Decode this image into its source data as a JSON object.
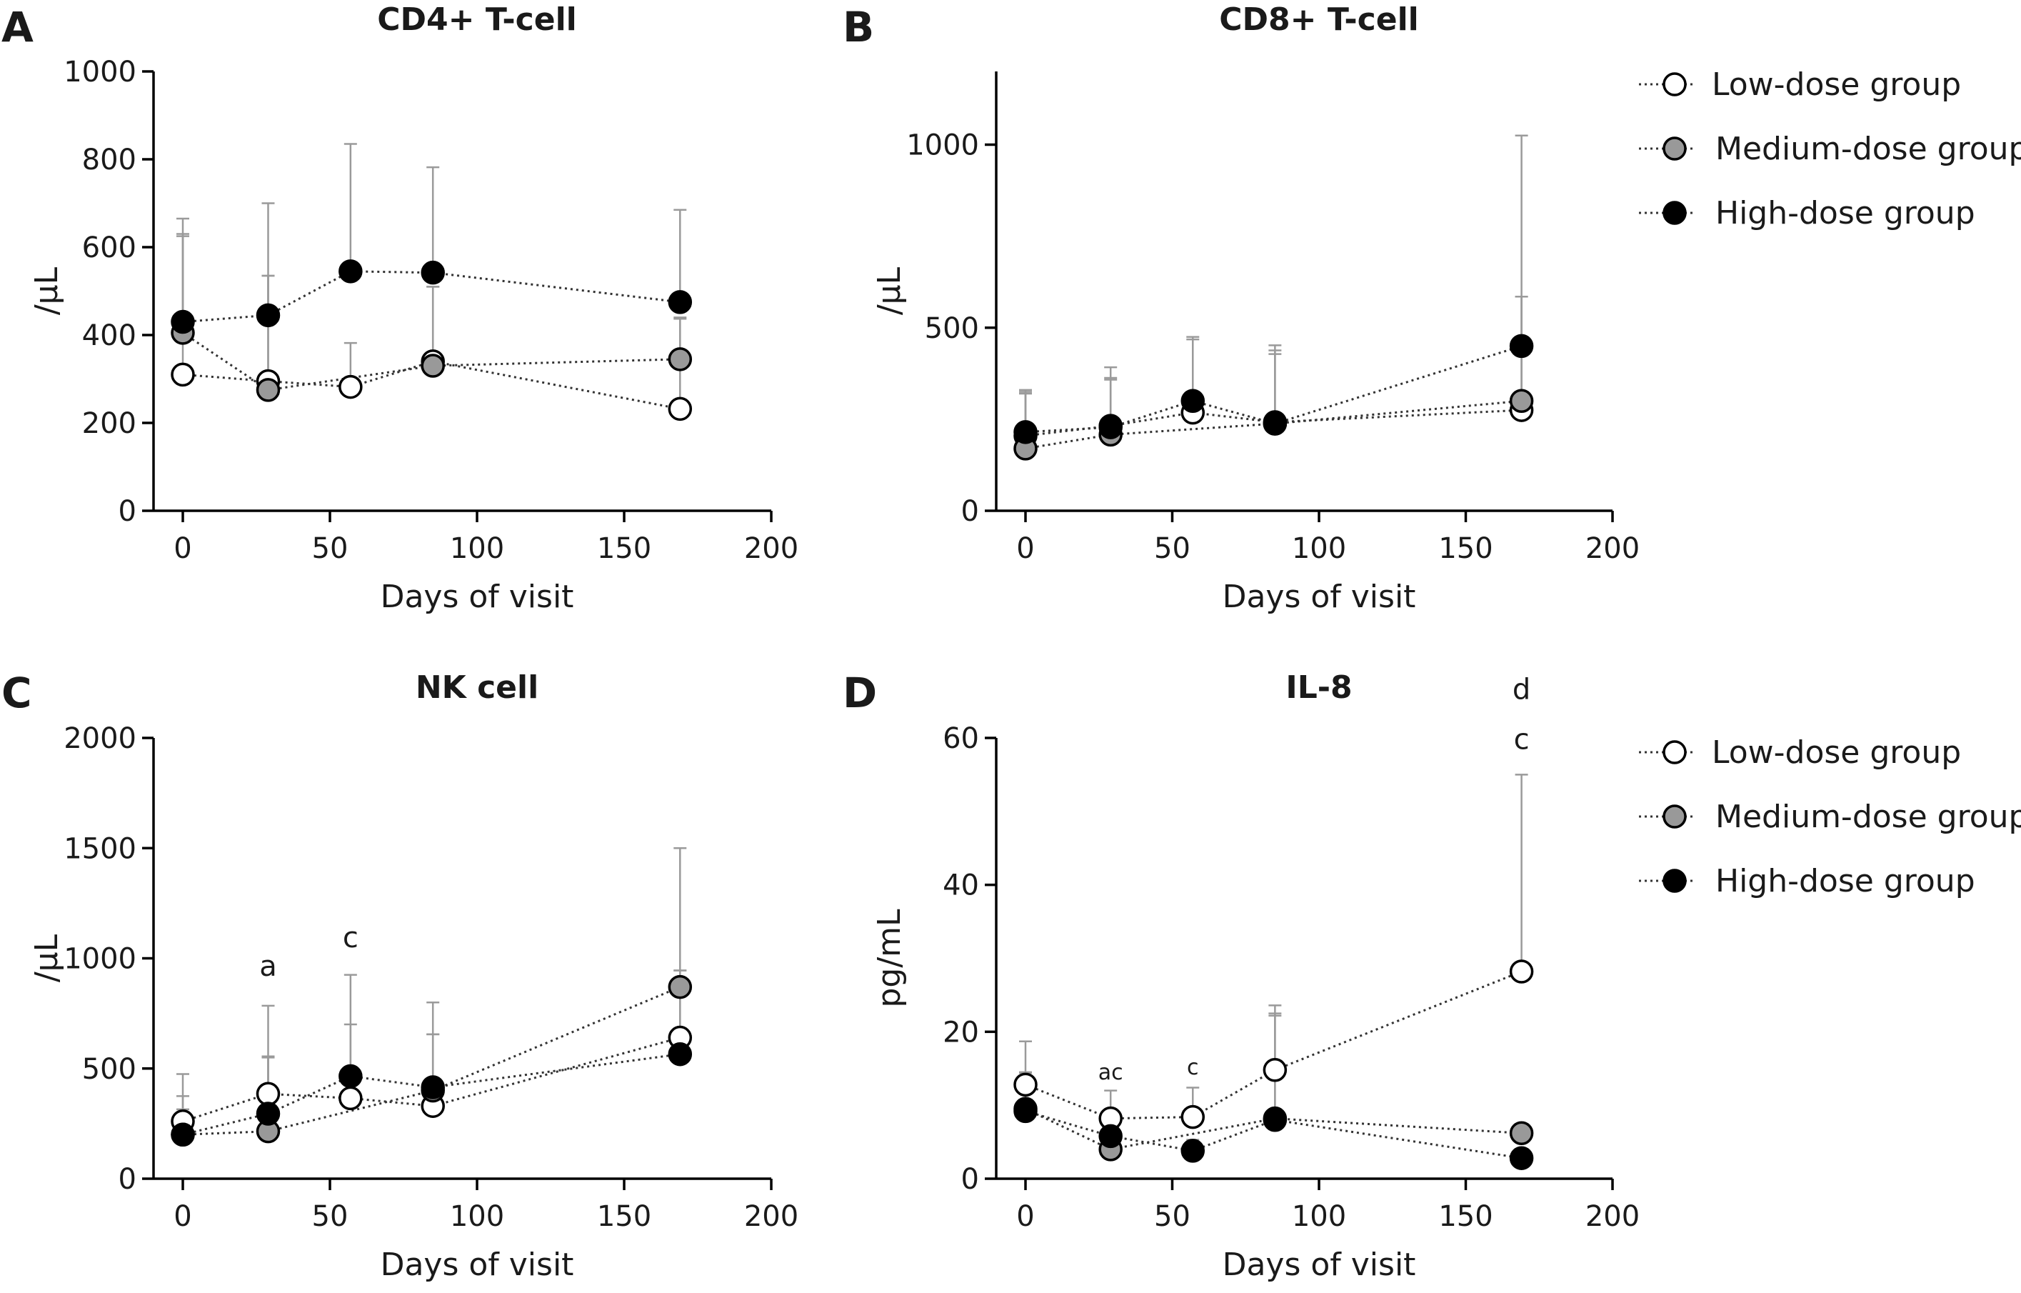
{
  "legend": {
    "items": [
      {
        "name": "Low-dose group",
        "color": "#ffffff"
      },
      {
        "name": "Medium-dose group",
        "color": "#999999"
      },
      {
        "name": "High-dose group",
        "color": "#000000"
      }
    ]
  },
  "chart_data": [
    {
      "panel": "A",
      "type": "line",
      "title": "CD4+ T-cell",
      "xlabel": "Days of visit",
      "ylabel": "/μL",
      "xlim": [
        0,
        200
      ],
      "ylim": [
        0,
        1000
      ],
      "xticks": [
        0,
        50,
        100,
        150,
        200
      ],
      "yticks": [
        0,
        200,
        400,
        600,
        800,
        1000
      ],
      "x": [
        0,
        29,
        57,
        85,
        169
      ],
      "series": [
        {
          "name": "Low-dose group",
          "values": [
            310,
            295,
            282,
            340,
            232
          ],
          "errors": [
            315,
            240,
            100,
            170,
            205
          ]
        },
        {
          "name": "Medium-dose group",
          "values": [
            405,
            275,
            null,
            330,
            345
          ],
          "errors": [
            225,
            260,
            null,
            180,
            95
          ]
        },
        {
          "name": "High-dose group",
          "values": [
            430,
            445,
            545,
            542,
            475
          ],
          "errors": [
            235,
            255,
            290,
            240,
            210
          ]
        }
      ],
      "annotations": []
    },
    {
      "panel": "B",
      "type": "line",
      "title": "CD8+ T-cell",
      "xlabel": "Days of visit",
      "ylabel": "/μL",
      "xlim": [
        0,
        200
      ],
      "ylim": [
        0,
        1200
      ],
      "xticks": [
        0,
        50,
        100,
        150,
        200
      ],
      "yticks": [
        0,
        500,
        1000
      ],
      "x": [
        0,
        29,
        57,
        85,
        169
      ],
      "series": [
        {
          "name": "Low-dose group",
          "values": [
            205,
            232,
            268,
            242,
            275
          ],
          "errors": [
            125,
            160,
            200,
            210,
            310
          ]
        },
        {
          "name": "Medium-dose group",
          "values": [
            170,
            208,
            null,
            238,
            300
          ],
          "errors": [
            150,
            155,
            null,
            190,
            285
          ]
        },
        {
          "name": "High-dose group",
          "values": [
            215,
            228,
            300,
            238,
            450
          ],
          "errors": [
            110,
            130,
            175,
            200,
            575
          ]
        }
      ],
      "annotations": []
    },
    {
      "panel": "C",
      "type": "line",
      "title": "NK cell",
      "xlabel": "Days of visit",
      "ylabel": "/μL",
      "xlim": [
        0,
        200
      ],
      "ylim": [
        0,
        2000
      ],
      "xticks": [
        0,
        50,
        100,
        150,
        200
      ],
      "yticks": [
        0,
        500,
        1000,
        1500,
        2000
      ],
      "x": [
        0,
        29,
        57,
        85,
        169
      ],
      "series": [
        {
          "name": "Low-dose group",
          "values": [
            260,
            385,
            365,
            330,
            640
          ],
          "errors": [
            215,
            400,
            335,
            470,
            305
          ]
        },
        {
          "name": "Medium-dose group",
          "values": [
            200,
            215,
            null,
            400,
            870
          ],
          "errors": [
            175,
            335,
            null,
            255,
            630
          ]
        },
        {
          "name": "High-dose group",
          "values": [
            200,
            295,
            465,
            415,
            565
          ],
          "errors": [
            115,
            260,
            460,
            240,
            380
          ]
        }
      ],
      "annotations": [
        {
          "x": 29,
          "y": 920,
          "text": "a"
        },
        {
          "x": 57,
          "y": 1050,
          "text": "c"
        }
      ]
    },
    {
      "panel": "D",
      "type": "line",
      "title": "IL-8",
      "xlabel": "Days of visit",
      "ylabel": "pg/mL",
      "xlim": [
        0,
        200
      ],
      "ylim": [
        0,
        60
      ],
      "xticks": [
        0,
        50,
        100,
        150,
        200
      ],
      "yticks": [
        0,
        20,
        40,
        60
      ],
      "x": [
        0,
        29,
        57,
        85,
        169
      ],
      "series": [
        {
          "name": "Low-dose group",
          "values": [
            12.8,
            8.2,
            8.4,
            14.8,
            28.2
          ],
          "errors": [
            5.9,
            3.8,
            4.0,
            8.8,
            26.8
          ]
        },
        {
          "name": "Medium-dose group",
          "values": [
            9.5,
            4.0,
            null,
            8.2,
            6.2
          ],
          "errors": [
            5.0,
            2.5,
            null,
            14.3,
            1.0
          ]
        },
        {
          "name": "High-dose group",
          "values": [
            9.2,
            5.8,
            3.8,
            8.0,
            2.8
          ],
          "errors": [
            5.2,
            2.2,
            1.5,
            14.2,
            1.0
          ]
        }
      ],
      "annotations": [
        {
          "x": 29,
          "y": 13.5,
          "text": "ac",
          "small": true
        },
        {
          "x": 57,
          "y": 14.2,
          "text": "c",
          "small": true
        },
        {
          "x": 169,
          "y": 58.5,
          "text": "c"
        },
        {
          "x": 169,
          "y": 65.3,
          "text": "d"
        }
      ]
    }
  ]
}
